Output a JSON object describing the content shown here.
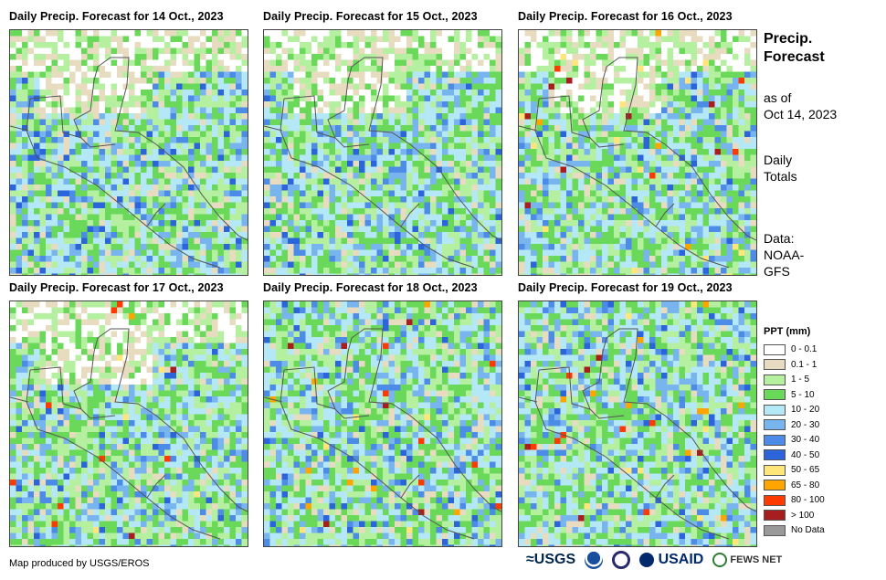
{
  "panels": [
    {
      "title": "Daily Precip. Forecast for 14 Oct., 2023"
    },
    {
      "title": "Daily Precip. Forecast for 15 Oct., 2023"
    },
    {
      "title": "Daily Precip. Forecast for 16 Oct., 2023"
    },
    {
      "title": "Daily Precip. Forecast for 17 Oct., 2023"
    },
    {
      "title": "Daily Precip. Forecast for 18 Oct., 2023"
    },
    {
      "title": "Daily Precip. Forecast for 19 Oct., 2023"
    }
  ],
  "side": {
    "title_line1": "Precip.",
    "title_line2": "Forecast",
    "asof_line1": "as of",
    "asof_line2": "Oct 14, 2023",
    "daily_line1": "Daily",
    "daily_line2": "Totals",
    "data_line1": "Data:",
    "data_line2": "NOAA-",
    "data_line3": "GFS"
  },
  "legend": {
    "title": "PPT (mm)",
    "items": [
      {
        "label": "0 - 0.1",
        "color": "#ffffff"
      },
      {
        "label": "0.1 - 1",
        "color": "#e8dcc0"
      },
      {
        "label": "1 - 5",
        "color": "#b4f0a0"
      },
      {
        "label": "5 - 10",
        "color": "#6ad95a"
      },
      {
        "label": "10 - 20",
        "color": "#b4e8f6"
      },
      {
        "label": "20 - 30",
        "color": "#78b4ee"
      },
      {
        "label": "30 - 40",
        "color": "#4c8ce6"
      },
      {
        "label": "40 - 50",
        "color": "#2c64dc"
      },
      {
        "label": "50 - 65",
        "color": "#ffe57a"
      },
      {
        "label": "65 - 80",
        "color": "#ffa500"
      },
      {
        "label": "80 - 100",
        "color": "#ff3a00"
      },
      {
        "label": "> 100",
        "color": "#a81e1e"
      },
      {
        "label": "No Data",
        "color": "#999999"
      }
    ]
  },
  "footer": {
    "credit": "Map produced by USGS/EROS",
    "logo_usgs": "USGS",
    "logo_usaid": "USAID",
    "logo_fews": "FEWS NET"
  }
}
